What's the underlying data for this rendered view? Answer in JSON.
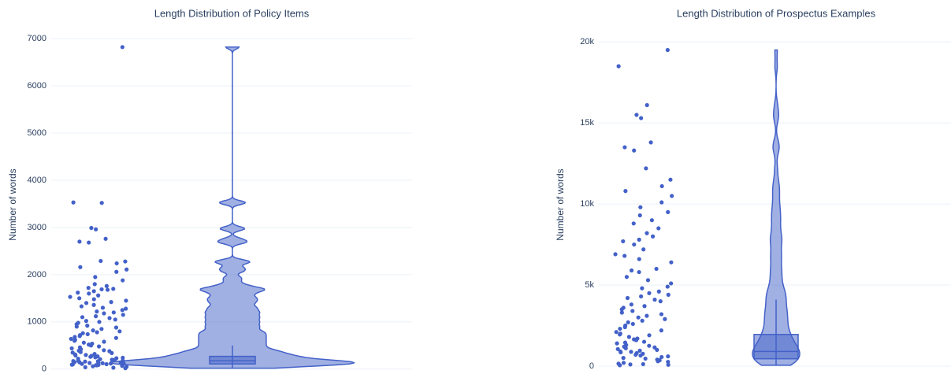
{
  "chart_data": [
    {
      "type": "violin",
      "title": "Length Distribution of Policy Items",
      "y_label": "Number of words",
      "color": "#4361c8",
      "ylim": [
        -20,
        7000
      ],
      "yticks": [
        0,
        1000,
        2000,
        3000,
        4000,
        5000,
        6000,
        7000
      ],
      "grid": true,
      "box": {
        "lower": 20,
        "q1": 110,
        "median": 175,
        "q3": 270,
        "upper": 500
      },
      "points": [
        6820,
        3530,
        3520,
        2990,
        2960,
        2760,
        2700,
        2680,
        2290,
        2280,
        2240,
        2160,
        2110,
        2060,
        1950,
        1880,
        1800,
        1760,
        1720,
        1700,
        1690,
        1680,
        1650,
        1620,
        1600,
        1560,
        1530,
        1500,
        1480,
        1450,
        1420,
        1400,
        1360,
        1330,
        1300,
        1280,
        1250,
        1220,
        1200,
        1180,
        1150,
        1120,
        1100,
        1080,
        1050,
        1020,
        1000,
        980,
        950,
        920,
        900,
        880,
        850,
        820,
        800,
        780,
        760,
        740,
        720,
        700,
        680,
        660,
        640,
        620,
        600,
        580,
        560,
        540,
        520,
        500,
        480,
        460,
        440,
        420,
        400,
        390,
        380,
        360,
        350,
        340,
        320,
        310,
        300,
        290,
        280,
        270,
        260,
        250,
        240,
        230,
        220,
        210,
        200,
        195,
        190,
        180,
        175,
        170,
        165,
        160,
        155,
        150,
        145,
        140,
        135,
        130,
        125,
        120,
        115,
        110,
        105,
        100,
        95,
        90,
        85,
        80,
        70,
        60,
        50,
        40,
        30,
        20
      ]
    },
    {
      "type": "violin",
      "title": "Length Distribution of Prospectus Examples",
      "y_label": "Number of words",
      "color": "#4361c8",
      "ylim": [
        -100,
        20400
      ],
      "yticks": [
        0,
        {
          "value": 5000,
          "label": "5k"
        },
        {
          "value": 10000,
          "label": "10k"
        },
        {
          "value": 15000,
          "label": "15k"
        },
        {
          "value": 20000,
          "label": "20k"
        }
      ],
      "grid": true,
      "box": {
        "lower": 30,
        "q1": 450,
        "median": 900,
        "q3": 1950,
        "upper": 4100
      },
      "points": [
        19500,
        18500,
        16100,
        15500,
        15300,
        13800,
        13500,
        13300,
        12200,
        11500,
        11100,
        10800,
        10500,
        10100,
        9800,
        9500,
        9300,
        9000,
        8800,
        8500,
        8200,
        8000,
        7800,
        7700,
        7500,
        7200,
        6900,
        6800,
        6600,
        6400,
        6000,
        5900,
        5800,
        5500,
        5300,
        5100,
        4900,
        4800,
        4600,
        4500,
        4400,
        4300,
        4200,
        4100,
        4000,
        3800,
        3700,
        3600,
        3500,
        3400,
        3300,
        3200,
        3100,
        3000,
        2900,
        2800,
        2700,
        2600,
        2500,
        2400,
        2300,
        2200,
        2100,
        2000,
        1950,
        1900,
        1800,
        1700,
        1650,
        1600,
        1500,
        1450,
        1400,
        1300,
        1250,
        1200,
        1150,
        1100,
        1050,
        1000,
        950,
        900,
        880,
        850,
        800,
        760,
        700,
        650,
        600,
        560,
        500,
        460,
        400,
        360,
        300,
        260,
        200,
        150,
        120,
        100,
        80,
        50
      ]
    }
  ]
}
